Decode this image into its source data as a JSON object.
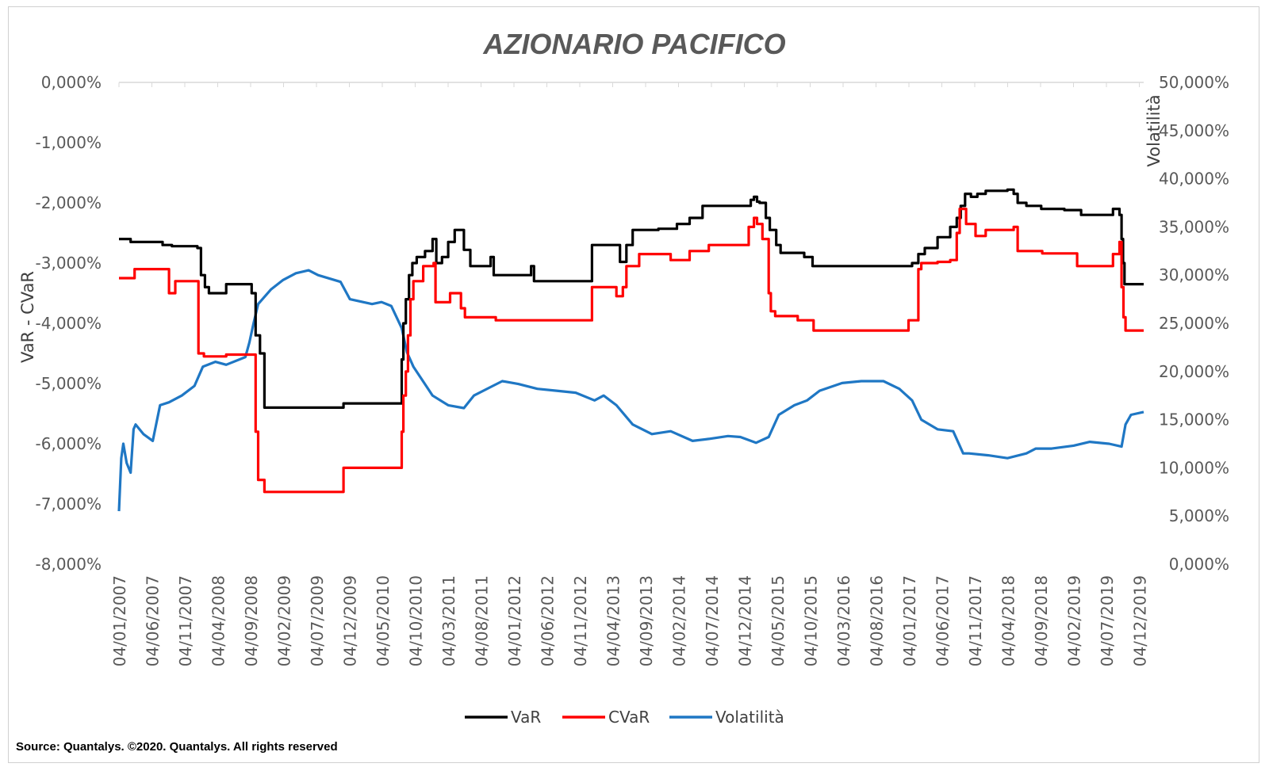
{
  "chart_data": {
    "type": "line",
    "title": "AZIONARIO PACIFICO",
    "ylabel_left": "VaR - CVaR",
    "ylabel_right": "Volatilità",
    "y_left_ticks": [
      "0,000%",
      "-1,000%",
      "-2,000%",
      "-3,000%",
      "-4,000%",
      "-5,000%",
      "-6,000%",
      "-7,000%",
      "-8,000%"
    ],
    "y_right_ticks": [
      "50,000%",
      "45,000%",
      "40,000%",
      "35,000%",
      "30,000%",
      "25,000%",
      "20,000%",
      "15,000%",
      "10,000%",
      "5,000%",
      "0,000%"
    ],
    "ylim_left": [
      -8,
      0
    ],
    "ylim_right": [
      0,
      50
    ],
    "x_ticks": [
      "04/01/2007",
      "04/06/2007",
      "04/11/2007",
      "04/04/2008",
      "04/09/2008",
      "04/02/2009",
      "04/07/2009",
      "04/12/2009",
      "04/05/2010",
      "04/10/2010",
      "04/03/2011",
      "04/08/2011",
      "04/01/2012",
      "04/06/2012",
      "04/11/2012",
      "04/04/2013",
      "04/09/2013",
      "04/02/2014",
      "04/07/2014",
      "04/12/2014",
      "04/05/2015",
      "04/10/2015",
      "04/03/2016",
      "04/08/2016",
      "04/01/2017",
      "04/06/2017",
      "04/11/2017",
      "04/04/2018",
      "04/09/2018",
      "04/02/2019",
      "04/07/2019",
      "04/12/2019"
    ],
    "x_range": [
      "2007-01-04",
      "2020-06-15"
    ],
    "grid": false,
    "legend_position": "bottom",
    "series": [
      {
        "name": "VaR",
        "color": "#000000",
        "axis": "left",
        "step": true,
        "points": [
          [
            "2007-01-04",
            -2.6
          ],
          [
            "2007-03-01",
            -2.65
          ],
          [
            "2007-08-01",
            -2.7
          ],
          [
            "2007-09-15",
            -2.72
          ],
          [
            "2008-01-15",
            -2.75
          ],
          [
            "2008-02-01",
            -3.2
          ],
          [
            "2008-02-20",
            -3.4
          ],
          [
            "2008-03-10",
            -3.5
          ],
          [
            "2008-06-01",
            -3.35
          ],
          [
            "2008-10-01",
            -3.5
          ],
          [
            "2008-10-20",
            -4.2
          ],
          [
            "2008-11-10",
            -4.5
          ],
          [
            "2008-12-01",
            -5.4
          ],
          [
            "2009-12-15",
            -5.33
          ],
          [
            "2010-09-20",
            -4.6
          ],
          [
            "2010-09-28",
            -4.0
          ],
          [
            "2010-10-10",
            -3.6
          ],
          [
            "2010-10-25",
            -3.2
          ],
          [
            "2010-11-10",
            -3.0
          ],
          [
            "2010-12-01",
            -2.9
          ],
          [
            "2011-01-10",
            -2.8
          ],
          [
            "2011-02-15",
            -2.6
          ],
          [
            "2011-03-05",
            -3.0
          ],
          [
            "2011-04-01",
            -2.9
          ],
          [
            "2011-05-01",
            -2.65
          ],
          [
            "2011-06-01",
            -2.45
          ],
          [
            "2011-07-15",
            -2.78
          ],
          [
            "2011-08-15",
            -3.05
          ],
          [
            "2011-11-20",
            -2.9
          ],
          [
            "2011-12-05",
            -3.2
          ],
          [
            "2012-06-01",
            -3.05
          ],
          [
            "2012-06-15",
            -3.3
          ],
          [
            "2013-03-20",
            -2.7
          ],
          [
            "2013-08-01",
            -2.98
          ],
          [
            "2013-09-01",
            -2.7
          ],
          [
            "2013-10-01",
            -2.45
          ],
          [
            "2014-02-01",
            -2.43
          ],
          [
            "2014-05-01",
            -2.35
          ],
          [
            "2014-07-01",
            -2.25
          ],
          [
            "2014-09-01",
            -2.05
          ],
          [
            "2015-04-20",
            -1.95
          ],
          [
            "2015-05-05",
            -1.9
          ],
          [
            "2015-05-20",
            -1.98
          ],
          [
            "2015-06-01",
            -2.0
          ],
          [
            "2015-07-01",
            -2.25
          ],
          [
            "2015-07-20",
            -2.45
          ],
          [
            "2015-08-20",
            -2.7
          ],
          [
            "2015-09-10",
            -2.83
          ],
          [
            "2016-01-01",
            -2.9
          ],
          [
            "2016-02-10",
            -3.05
          ],
          [
            "2017-06-01",
            -3.0
          ],
          [
            "2017-07-01",
            -2.85
          ],
          [
            "2017-08-01",
            -2.75
          ],
          [
            "2017-10-01",
            -2.57
          ],
          [
            "2017-12-01",
            -2.4
          ],
          [
            "2018-01-01",
            -2.25
          ],
          [
            "2018-01-20",
            -2.05
          ],
          [
            "2018-02-10",
            -1.85
          ],
          [
            "2018-03-10",
            -1.9
          ],
          [
            "2018-04-10",
            -1.85
          ],
          [
            "2018-05-20",
            -1.8
          ],
          [
            "2018-09-01",
            -1.78
          ],
          [
            "2018-10-01",
            -1.85
          ],
          [
            "2018-10-20",
            -2.0
          ],
          [
            "2018-12-01",
            -2.05
          ],
          [
            "2019-02-10",
            -2.1
          ],
          [
            "2019-06-01",
            -2.12
          ],
          [
            "2019-08-20",
            -2.2
          ],
          [
            "2020-01-20",
            -2.1
          ],
          [
            "2020-02-20",
            -2.2
          ],
          [
            "2020-03-01",
            -2.6
          ],
          [
            "2020-03-08",
            -3.0
          ],
          [
            "2020-03-15",
            -3.35
          ],
          [
            "2020-06-15",
            -3.35
          ]
        ]
      },
      {
        "name": "CVaR",
        "color": "#ff0000",
        "axis": "left",
        "step": true,
        "points": [
          [
            "2007-01-04",
            -3.25
          ],
          [
            "2007-03-20",
            -3.1
          ],
          [
            "2007-09-01",
            -3.5
          ],
          [
            "2007-10-01",
            -3.3
          ],
          [
            "2008-01-20",
            -4.5
          ],
          [
            "2008-02-15",
            -4.55
          ],
          [
            "2008-06-01",
            -4.52
          ],
          [
            "2008-10-20",
            -5.8
          ],
          [
            "2008-11-01",
            -6.6
          ],
          [
            "2008-12-01",
            -6.8
          ],
          [
            "2009-12-15",
            -6.4
          ],
          [
            "2010-09-20",
            -5.8
          ],
          [
            "2010-09-28",
            -5.2
          ],
          [
            "2010-10-10",
            -4.8
          ],
          [
            "2010-10-20",
            -4.2
          ],
          [
            "2010-11-01",
            -3.6
          ],
          [
            "2010-11-15",
            -3.3
          ],
          [
            "2011-01-01",
            -3.05
          ],
          [
            "2011-02-20",
            -3.0
          ],
          [
            "2011-03-01",
            -3.65
          ],
          [
            "2011-05-10",
            -3.5
          ],
          [
            "2011-07-01",
            -3.75
          ],
          [
            "2011-07-20",
            -3.9
          ],
          [
            "2011-12-15",
            -3.95
          ],
          [
            "2013-03-20",
            -3.4
          ],
          [
            "2013-07-15",
            -3.55
          ],
          [
            "2013-08-15",
            -3.4
          ],
          [
            "2013-09-01",
            -3.05
          ],
          [
            "2013-11-01",
            -2.85
          ],
          [
            "2014-04-01",
            -2.95
          ],
          [
            "2014-07-01",
            -2.8
          ],
          [
            "2014-10-01",
            -2.7
          ],
          [
            "2015-04-10",
            -2.4
          ],
          [
            "2015-05-05",
            -2.25
          ],
          [
            "2015-05-20",
            -2.35
          ],
          [
            "2015-06-15",
            -2.6
          ],
          [
            "2015-07-15",
            -3.5
          ],
          [
            "2015-07-25",
            -3.8
          ],
          [
            "2015-08-15",
            -3.88
          ],
          [
            "2015-12-01",
            -3.95
          ],
          [
            "2016-02-15",
            -4.12
          ],
          [
            "2017-05-15",
            -3.95
          ],
          [
            "2017-07-01",
            -3.1
          ],
          [
            "2017-07-15",
            -3.0
          ],
          [
            "2017-10-01",
            -2.98
          ],
          [
            "2017-12-01",
            -2.95
          ],
          [
            "2018-01-01",
            -2.5
          ],
          [
            "2018-01-15",
            -2.1
          ],
          [
            "2018-02-15",
            -2.35
          ],
          [
            "2018-04-01",
            -2.55
          ],
          [
            "2018-05-20",
            -2.45
          ],
          [
            "2018-10-01",
            -2.4
          ],
          [
            "2018-10-20",
            -2.8
          ],
          [
            "2019-02-15",
            -2.84
          ],
          [
            "2019-08-01",
            -3.05
          ],
          [
            "2020-01-20",
            -2.85
          ],
          [
            "2020-02-20",
            -2.65
          ],
          [
            "2020-03-01",
            -3.4
          ],
          [
            "2020-03-10",
            -3.9
          ],
          [
            "2020-03-20",
            -4.12
          ],
          [
            "2020-06-15",
            -4.12
          ]
        ]
      },
      {
        "name": "Volatilità",
        "color": "#1f77c4",
        "axis": "right",
        "step": false,
        "points": [
          [
            "2007-01-04",
            5.5
          ],
          [
            "2007-01-15",
            11.0
          ],
          [
            "2007-01-25",
            12.5
          ],
          [
            "2007-02-10",
            10.5
          ],
          [
            "2007-03-01",
            9.5
          ],
          [
            "2007-03-15",
            14.0
          ],
          [
            "2007-03-25",
            14.5
          ],
          [
            "2007-05-01",
            13.5
          ],
          [
            "2007-06-15",
            12.8
          ],
          [
            "2007-07-20",
            16.5
          ],
          [
            "2007-09-01",
            16.8
          ],
          [
            "2007-11-01",
            17.5
          ],
          [
            "2008-01-01",
            18.5
          ],
          [
            "2008-02-10",
            20.5
          ],
          [
            "2008-04-10",
            21.0
          ],
          [
            "2008-06-01",
            20.7
          ],
          [
            "2008-09-01",
            21.5
          ],
          [
            "2008-09-20",
            23.0
          ],
          [
            "2008-10-10",
            25.0
          ],
          [
            "2008-11-01",
            27.0
          ],
          [
            "2009-01-01",
            28.5
          ],
          [
            "2009-03-01",
            29.5
          ],
          [
            "2009-05-01",
            30.2
          ],
          [
            "2009-07-01",
            30.5
          ],
          [
            "2009-08-15",
            30.0
          ],
          [
            "2009-12-01",
            29.3
          ],
          [
            "2010-01-15",
            27.5
          ],
          [
            "2010-05-01",
            27.0
          ],
          [
            "2010-06-15",
            27.2
          ],
          [
            "2010-08-01",
            26.8
          ],
          [
            "2010-09-20",
            24.5
          ],
          [
            "2010-10-15",
            22.0
          ],
          [
            "2010-11-15",
            20.5
          ],
          [
            "2011-01-15",
            18.5
          ],
          [
            "2011-02-15",
            17.5
          ],
          [
            "2011-05-01",
            16.5
          ],
          [
            "2011-07-15",
            16.2
          ],
          [
            "2011-09-01",
            17.5
          ],
          [
            "2011-12-01",
            18.5
          ],
          [
            "2012-01-15",
            19.0
          ],
          [
            "2012-04-01",
            18.7
          ],
          [
            "2012-07-01",
            18.2
          ],
          [
            "2012-10-01",
            18.0
          ],
          [
            "2013-01-01",
            17.8
          ],
          [
            "2013-04-01",
            17.0
          ],
          [
            "2013-05-15",
            17.5
          ],
          [
            "2013-07-15",
            16.5
          ],
          [
            "2013-10-01",
            14.5
          ],
          [
            "2014-01-01",
            13.5
          ],
          [
            "2014-04-01",
            13.8
          ],
          [
            "2014-07-15",
            12.8
          ],
          [
            "2014-10-01",
            13.0
          ],
          [
            "2015-01-01",
            13.3
          ],
          [
            "2015-03-01",
            13.2
          ],
          [
            "2015-05-15",
            12.6
          ],
          [
            "2015-07-15",
            13.2
          ],
          [
            "2015-09-01",
            15.5
          ],
          [
            "2015-11-15",
            16.5
          ],
          [
            "2016-01-15",
            17.0
          ],
          [
            "2016-03-15",
            18.0
          ],
          [
            "2016-07-01",
            18.8
          ],
          [
            "2016-10-01",
            19.0
          ],
          [
            "2017-01-15",
            19.0
          ],
          [
            "2017-04-01",
            18.2
          ],
          [
            "2017-06-01",
            17.0
          ],
          [
            "2017-07-15",
            15.0
          ],
          [
            "2017-10-01",
            14.0
          ],
          [
            "2017-12-15",
            13.8
          ],
          [
            "2018-02-01",
            11.5
          ],
          [
            "2018-03-01",
            11.5
          ],
          [
            "2018-06-01",
            11.3
          ],
          [
            "2018-09-01",
            11.0
          ],
          [
            "2018-12-01",
            11.5
          ],
          [
            "2019-01-15",
            12.0
          ],
          [
            "2019-04-01",
            12.0
          ],
          [
            "2019-07-15",
            12.3
          ],
          [
            "2019-10-01",
            12.7
          ],
          [
            "2020-01-01",
            12.5
          ],
          [
            "2020-03-01",
            12.2
          ],
          [
            "2020-03-20",
            14.5
          ],
          [
            "2020-04-15",
            15.5
          ],
          [
            "2020-06-15",
            15.8
          ]
        ]
      }
    ]
  },
  "source_text": "Source: Quantalys. ©2020. Quantalys. All rights reserved"
}
